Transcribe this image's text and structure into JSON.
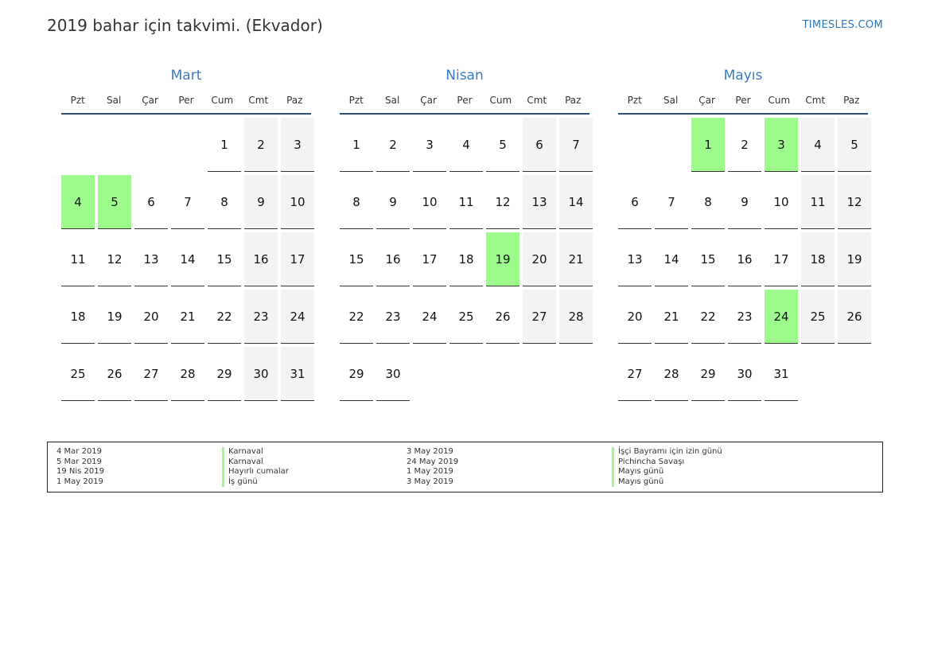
{
  "title": "2019 bahar için takvimi. (Ekvador)",
  "site": "TIMESLES.COM",
  "weekdays": [
    "Pzt",
    "Sal",
    "Çar",
    "Per",
    "Cum",
    "Cmt",
    "Paz"
  ],
  "colors": {
    "holiday": "#9dfb8c",
    "weekend": "#f3f3f3",
    "month_title": "#3a7bbf",
    "rule": "#2f4f6f"
  },
  "months": [
    {
      "name": "Mart",
      "offset": 4,
      "days": 31,
      "holidays": [
        4,
        5
      ]
    },
    {
      "name": "Nisan",
      "offset": 0,
      "days": 30,
      "holidays": [
        19
      ]
    },
    {
      "name": "Mayıs",
      "offset": 2,
      "days": 31,
      "holidays": [
        1,
        3,
        24
      ]
    }
  ],
  "legend": {
    "left": [
      {
        "date": "4 Mar 2019",
        "name": "Karnaval"
      },
      {
        "date": "5 Mar 2019",
        "name": "Karnaval"
      },
      {
        "date": "19 Nis 2019",
        "name": "Hayırlı cumalar"
      },
      {
        "date": "1 May 2019",
        "name": "İş günü"
      }
    ],
    "right": [
      {
        "date": "3 May 2019",
        "name": "İşçi Bayramı için izin günü"
      },
      {
        "date": "24 May 2019",
        "name": "Pichincha Savaşı"
      },
      {
        "date": "1 May 2019",
        "name": "Mayıs günü"
      },
      {
        "date": "3 May 2019",
        "name": "Mayıs günü"
      }
    ]
  }
}
